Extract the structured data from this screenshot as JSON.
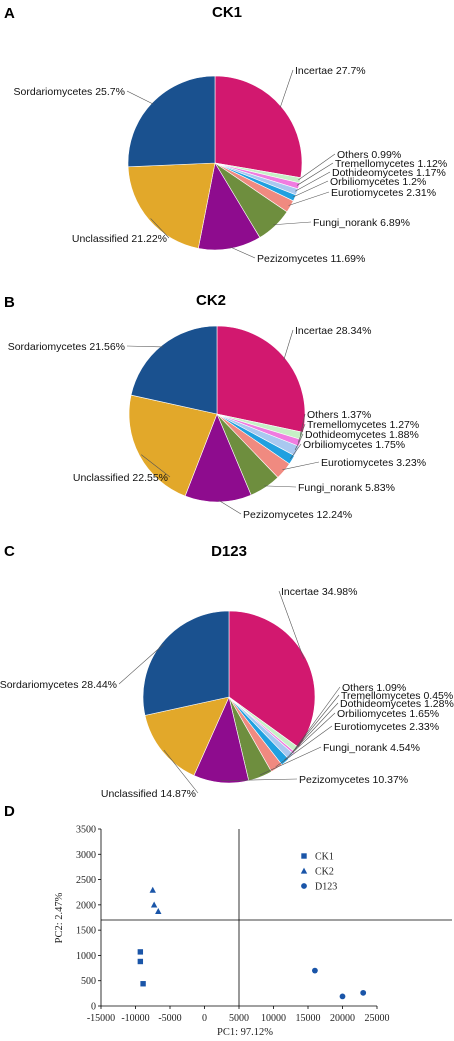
{
  "panels": [
    "A",
    "B",
    "C",
    "D"
  ],
  "colors": {
    "Incertae": "#D2186F",
    "Others": "#C6F0C6",
    "Tremellomycetes": "#F07CE0",
    "Dothideomycetes": "#A9C8F0",
    "Orbiliomycetes": "#20A0E0",
    "Eurotiomycetes": "#F08A80",
    "Fungi_norank": "#6E8E3E",
    "Pezizomycetes": "#8E0C8E",
    "Unclassified": "#E2A82A",
    "Sordariomycetes": "#1A518F",
    "marker": "#1A55A8"
  },
  "chart_data": [
    {
      "type": "pie",
      "title": "CK1",
      "slices": [
        {
          "name": "Incertae",
          "value": 27.7,
          "label": "Incertae 27.7%"
        },
        {
          "name": "Others",
          "value": 0.99,
          "label": "Others 0.99%"
        },
        {
          "name": "Tremellomycetes",
          "value": 1.12,
          "label": "Tremellomycetes 1.12%"
        },
        {
          "name": "Dothideomycetes",
          "value": 1.17,
          "label": "Dothideomycetes 1.17%"
        },
        {
          "name": "Orbiliomycetes",
          "value": 1.2,
          "label": "Orbiliomycetes 1.2%"
        },
        {
          "name": "Eurotiomycetes",
          "value": 2.31,
          "label": "Eurotiomycetes 2.31%"
        },
        {
          "name": "Fungi_norank",
          "value": 6.89,
          "label": "Fungi_norank 6.89%"
        },
        {
          "name": "Pezizomycetes",
          "value": 11.69,
          "label": "Pezizomycetes 11.69%"
        },
        {
          "name": "Unclassified",
          "value": 21.22,
          "label": "Unclassified 21.22%"
        },
        {
          "name": "Sordariomycetes",
          "value": 25.7,
          "label": "Sordariomycetes 25.7%"
        }
      ]
    },
    {
      "type": "pie",
      "title": "CK2",
      "slices": [
        {
          "name": "Incertae",
          "value": 28.34,
          "label": "Incertae 28.34%"
        },
        {
          "name": "Others",
          "value": 1.37,
          "label": "Others 1.37%"
        },
        {
          "name": "Tremellomycetes",
          "value": 1.27,
          "label": "Tremellomycetes 1.27%"
        },
        {
          "name": "Dothideomycetes",
          "value": 1.88,
          "label": "Dothideomycetes 1.88%"
        },
        {
          "name": "Orbiliomycetes",
          "value": 1.75,
          "label": "Orbiliomycetes 1.75%"
        },
        {
          "name": "Eurotiomycetes",
          "value": 3.23,
          "label": "Eurotiomycetes 3.23%"
        },
        {
          "name": "Fungi_norank",
          "value": 5.83,
          "label": "Fungi_norank 5.83%"
        },
        {
          "name": "Pezizomycetes",
          "value": 12.24,
          "label": "Pezizomycetes 12.24%"
        },
        {
          "name": "Unclassified",
          "value": 22.55,
          "label": "Unclassified 22.55%"
        },
        {
          "name": "Sordariomycetes",
          "value": 21.56,
          "label": "Sordariomycetes 21.56%"
        }
      ]
    },
    {
      "type": "pie",
      "title": "D123",
      "slices": [
        {
          "name": "Incertae",
          "value": 34.98,
          "label": "Incertae 34.98%"
        },
        {
          "name": "Others",
          "value": 1.09,
          "label": "Others 1.09%"
        },
        {
          "name": "Tremellomycetes",
          "value": 0.45,
          "label": "Tremellomycetes 0.45%"
        },
        {
          "name": "Dothideomycetes",
          "value": 1.28,
          "label": "Dothideomycetes 1.28%"
        },
        {
          "name": "Orbiliomycetes",
          "value": 1.65,
          "label": "Orbiliomycetes 1.65%"
        },
        {
          "name": "Eurotiomycetes",
          "value": 2.33,
          "label": "Eurotiomycetes 2.33%"
        },
        {
          "name": "Fungi_norank",
          "value": 4.54,
          "label": "Fungi_norank 4.54%"
        },
        {
          "name": "Pezizomycetes",
          "value": 10.37,
          "label": "Pezizomycetes 10.37%"
        },
        {
          "name": "Unclassified",
          "value": 14.87,
          "label": "Unclassified 14.87%"
        },
        {
          "name": "Sordariomycetes",
          "value": 28.44,
          "label": "Sordariomycetes 28.44%"
        }
      ]
    },
    {
      "type": "scatter",
      "title": "",
      "xlabel": "PC1: 97.12%",
      "ylabel": "PC2: 2.47%",
      "xlim": [
        -15000,
        25000
      ],
      "ylim": [
        0,
        3500
      ],
      "xticks": [
        -15000,
        -10000,
        -5000,
        0,
        5000,
        10000,
        15000,
        20000,
        25000
      ],
      "yticks": [
        0,
        500,
        1000,
        1500,
        2000,
        2500,
        3000,
        3500
      ],
      "reference_lines": {
        "x": 5000,
        "y": 1700
      },
      "legend_position": "top-right",
      "series": [
        {
          "name": "CK1",
          "marker": "square",
          "points": [
            [
              -9300,
              1070
            ],
            [
              -9300,
              880
            ],
            [
              -8900,
              440
            ]
          ]
        },
        {
          "name": "CK2",
          "marker": "triangle",
          "points": [
            [
              -7500,
              2290
            ],
            [
              -7300,
              2000
            ],
            [
              -6700,
              1870
            ]
          ]
        },
        {
          "name": "D123",
          "marker": "circle",
          "points": [
            [
              16000,
              700
            ],
            [
              20000,
              190
            ],
            [
              23000,
              260
            ]
          ]
        }
      ]
    }
  ]
}
